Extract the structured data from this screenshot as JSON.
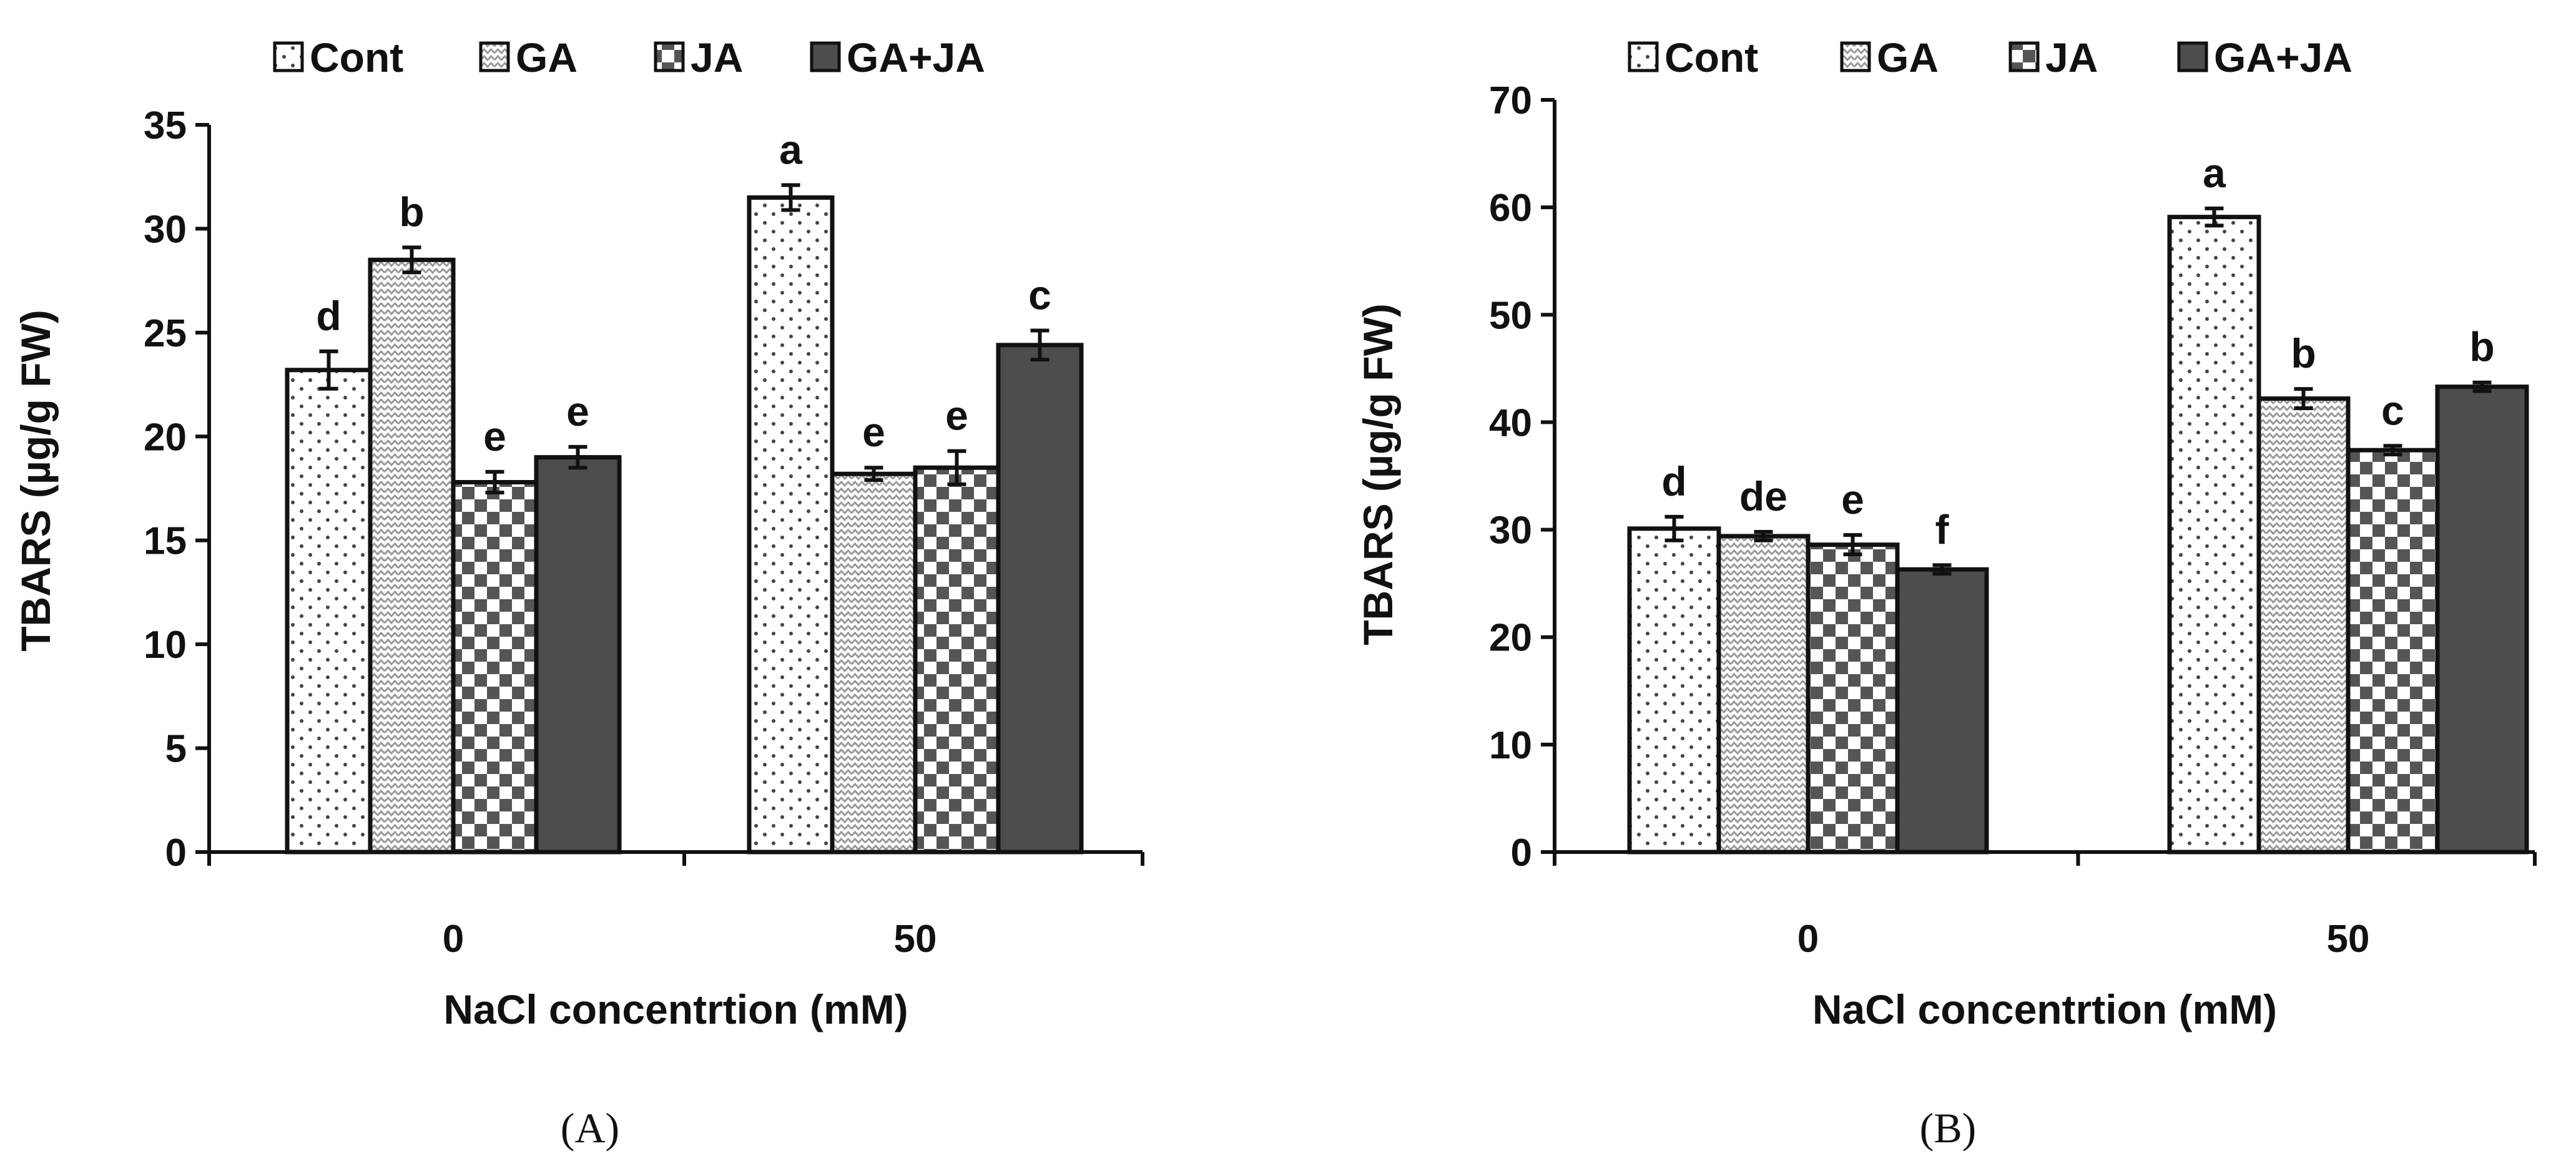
{
  "chart_data": [
    {
      "type": "bar",
      "panel": "A",
      "caption": "(A)",
      "legend": [
        "Cont",
        "GA",
        "JA",
        "GA+JA"
      ],
      "categories": [
        "0",
        "50"
      ],
      "xlabel": "NaCl concentrtion (mM)",
      "ylabel": "TBARS  (µg/g FW)",
      "ylim": [
        0,
        35
      ],
      "yticks": [
        0,
        5,
        10,
        15,
        20,
        25,
        30,
        35
      ],
      "series": [
        {
          "name": "Cont",
          "values": [
            23.2,
            31.5
          ],
          "errors": [
            0.9,
            0.6
          ],
          "letters": [
            "d",
            "a"
          ]
        },
        {
          "name": "GA",
          "values": [
            28.5,
            18.2
          ],
          "errors": [
            0.6,
            0.3
          ],
          "letters": [
            "b",
            "e"
          ]
        },
        {
          "name": "JA",
          "values": [
            17.8,
            18.5
          ],
          "errors": [
            0.5,
            0.8
          ],
          "letters": [
            "e",
            "e"
          ]
        },
        {
          "name": "GA+JA",
          "values": [
            19.0,
            24.4
          ],
          "errors": [
            0.5,
            0.7
          ],
          "letters": [
            "e",
            "c"
          ]
        }
      ]
    },
    {
      "type": "bar",
      "panel": "B",
      "caption": "(B)",
      "legend": [
        "Cont",
        "GA",
        "JA",
        "GA+JA"
      ],
      "categories": [
        "0",
        "50"
      ],
      "xlabel": "NaCl concentrtion (mM)",
      "ylabel": "TBARS (µg/g FW)",
      "ylim": [
        0,
        70
      ],
      "yticks": [
        0,
        10,
        20,
        30,
        40,
        50,
        60,
        70
      ],
      "series": [
        {
          "name": "Cont",
          "values": [
            30.1,
            59.1
          ],
          "errors": [
            1.1,
            0.8
          ],
          "letters": [
            "d",
            "a"
          ]
        },
        {
          "name": "GA",
          "values": [
            29.4,
            42.2
          ],
          "errors": [
            0.4,
            0.9
          ],
          "letters": [
            "de",
            "b"
          ]
        },
        {
          "name": "JA",
          "values": [
            28.6,
            37.4
          ],
          "errors": [
            0.9,
            0.4
          ],
          "letters": [
            "e",
            "c"
          ]
        },
        {
          "name": "GA+JA",
          "values": [
            26.3,
            43.3
          ],
          "errors": [
            0.4,
            0.4
          ],
          "letters": [
            "f",
            "b"
          ]
        }
      ]
    }
  ],
  "colors": {
    "outline": "#111111",
    "dots": "#444444",
    "zigzag": "#9a9a9a",
    "checker": "#555555",
    "solid": "#4d4d4d"
  }
}
